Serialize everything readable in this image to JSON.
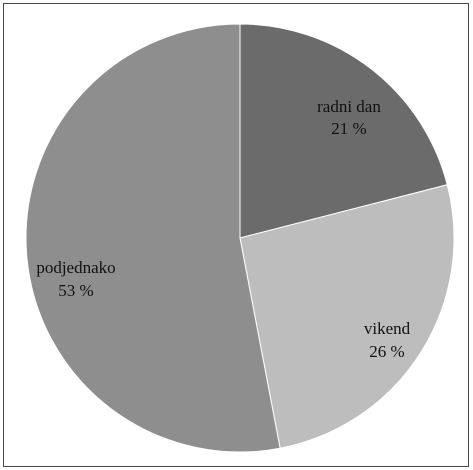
{
  "chart_data": {
    "type": "pie",
    "title": "",
    "slices": [
      {
        "label": "radni dan",
        "value": 21,
        "value_label": "21 %",
        "color": "#6b6b6b"
      },
      {
        "label": "vikend",
        "value": 26,
        "value_label": "26 %",
        "color": "#bdbdbd"
      },
      {
        "label": "podjednako",
        "value": 53,
        "value_label": "53 %",
        "color": "#8e8e8e"
      }
    ],
    "start_angle": "12 o'clock",
    "direction": "clockwise",
    "legend": "none",
    "labels_inside": true
  }
}
